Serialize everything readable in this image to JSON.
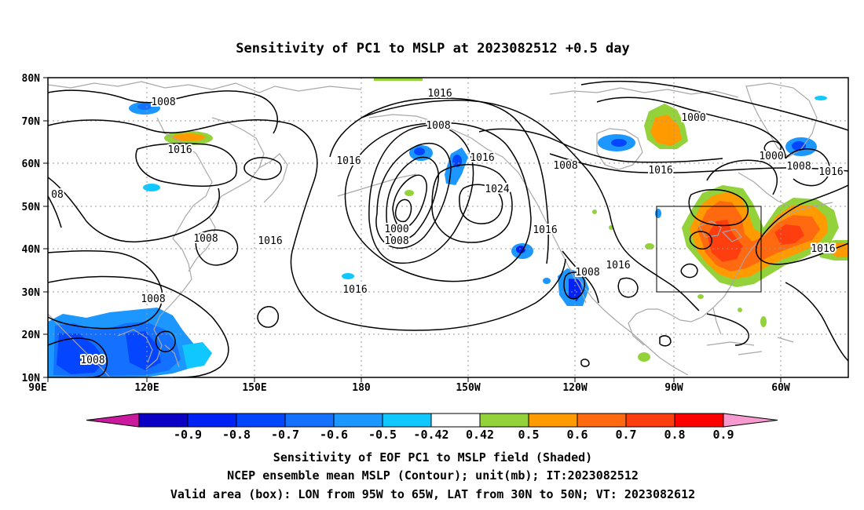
{
  "title": "Sensitivity of PC1 to MSLP at 2023082512 +0.5 day",
  "map": {
    "lon_range": [
      "90E",
      "45W"
    ],
    "lat_range": [
      10,
      80
    ],
    "lon_ticks": [
      "90E",
      "120E",
      "150E",
      "180",
      "150W",
      "120W",
      "90W",
      "60W"
    ],
    "lat_ticks": [
      "80N",
      "70N",
      "60N",
      "50N",
      "40N",
      "30N",
      "20N",
      "10N"
    ],
    "grid": true,
    "coastlines": true
  },
  "contour_labels": {
    "c1": "1008",
    "c2": "1016",
    "c3": "1016",
    "c4": "1008",
    "c5": "1016",
    "c6": "08",
    "c7": "1008",
    "c8": "1016",
    "c9": "1016",
    "c10": "1024",
    "c11": "1000",
    "c12": "1008",
    "c13": "1016",
    "c14": "1008",
    "c15": "1016",
    "c16": "1008",
    "c17": "1016",
    "c18": "1000",
    "c19": "1000",
    "c20": "1008",
    "c21": "1016",
    "c22": "1016",
    "c23": "1008"
  },
  "valid_box": {
    "lon": [
      "95W",
      "65W"
    ],
    "lat": [
      "30N",
      "50N"
    ]
  },
  "colorbar": {
    "labels": [
      "-0.9",
      "-0.8",
      "-0.7",
      "-0.6",
      "-0.5",
      "-0.42",
      "0.42",
      "0.5",
      "0.6",
      "0.7",
      "0.8",
      "0.9"
    ],
    "colors": [
      "#0b00c4",
      "#0022f5",
      "#0446ff",
      "#1470ff",
      "#1c97ff",
      "#10c8ff",
      "#ffffff",
      "#94d23c",
      "#ff9a00",
      "#ff6a10",
      "#ff3e10",
      "#ff0000"
    ],
    "low_end_color": "#cc1aa0",
    "high_end_color": "#f79ad0"
  },
  "captions": {
    "line1": "Sensitivity of EOF PC1 to MSLP field (Shaded)",
    "line2": "NCEP ensemble mean MSLP (Contour); unit(mb); IT:2023082512",
    "line3": "Valid area (box): LON from 95W to 65W, LAT from 30N to 50N; VT: 2023082612"
  }
}
